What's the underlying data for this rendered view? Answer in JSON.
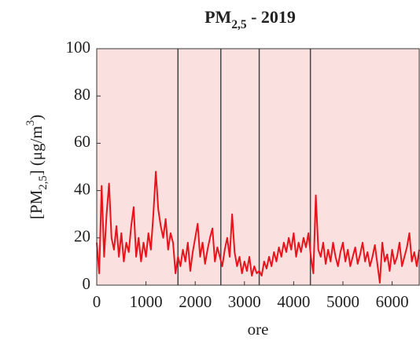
{
  "chart_data": {
    "type": "line",
    "title": [
      "PM",
      "2,5",
      " - 2019"
    ],
    "xlabel": "ore",
    "ylabel": [
      "[PM",
      "2,5",
      "] (μg/m",
      "3",
      ")"
    ],
    "x": [
      0,
      50,
      100,
      150,
      200,
      250,
      300,
      350,
      400,
      450,
      500,
      550,
      600,
      650,
      700,
      750,
      800,
      850,
      900,
      950,
      1000,
      1050,
      1100,
      1150,
      1200,
      1250,
      1300,
      1350,
      1400,
      1450,
      1500,
      1550,
      1600,
      1650,
      1700,
      1750,
      1800,
      1850,
      1900,
      1950,
      2000,
      2050,
      2100,
      2150,
      2200,
      2250,
      2300,
      2350,
      2400,
      2450,
      2500,
      2550,
      2600,
      2650,
      2700,
      2750,
      2800,
      2850,
      2900,
      2950,
      3000,
      3050,
      3100,
      3150,
      3200,
      3250,
      3300,
      3350,
      3400,
      3450,
      3500,
      3550,
      3600,
      3650,
      3700,
      3750,
      3800,
      3850,
      3900,
      3950,
      4000,
      4050,
      4100,
      4150,
      4200,
      4250,
      4300,
      4350,
      4400,
      4450,
      4500,
      4550,
      4600,
      4650,
      4700,
      4750,
      4800,
      4850,
      4900,
      4950,
      5000,
      5050,
      5100,
      5150,
      5200,
      5250,
      5300,
      5350,
      5400,
      5450,
      5500,
      5550,
      5600,
      5650,
      5700,
      5750,
      5800,
      5850,
      5900,
      5950,
      6000,
      6050,
      6100,
      6150,
      6200,
      6250,
      6300,
      6350,
      6400,
      6450,
      6500,
      6550
    ],
    "series": [
      {
        "color": "#e8141c",
        "values": [
          18,
          5,
          42,
          12,
          30,
          43,
          20,
          15,
          25,
          12,
          22,
          10,
          18,
          14,
          25,
          33,
          12,
          20,
          10,
          18,
          12,
          22,
          15,
          30,
          48,
          32,
          25,
          20,
          28,
          15,
          22,
          18,
          5,
          12,
          8,
          15,
          10,
          18,
          6,
          14,
          20,
          26,
          12,
          18,
          9,
          15,
          20,
          24,
          10,
          16,
          12,
          8,
          15,
          20,
          12,
          30,
          14,
          8,
          12,
          5,
          10,
          6,
          12,
          4,
          8,
          5,
          6,
          4,
          10,
          7,
          12,
          8,
          14,
          10,
          16,
          12,
          18,
          14,
          20,
          15,
          22,
          12,
          18,
          14,
          20,
          16,
          22,
          12,
          5,
          38,
          15,
          12,
          18,
          9,
          15,
          10,
          18,
          12,
          8,
          14,
          18,
          10,
          15,
          8,
          12,
          16,
          9,
          13,
          18,
          10,
          14,
          8,
          12,
          17,
          9,
          1,
          18,
          10,
          13,
          6,
          15,
          9,
          12,
          18,
          8,
          12,
          16,
          22,
          10,
          14,
          8,
          15
        ]
      }
    ],
    "vlines": [
      1650,
      2520,
      3300,
      4340
    ],
    "vline_color": "#444444",
    "background": "#fbe0e0",
    "xlim": [
      0,
      6550
    ],
    "xticks": [
      0,
      1000,
      2000,
      3000,
      4000,
      5000,
      6000
    ],
    "ylim": [
      0,
      100
    ],
    "yticks": [
      0,
      20,
      40,
      60,
      80,
      100
    ]
  }
}
